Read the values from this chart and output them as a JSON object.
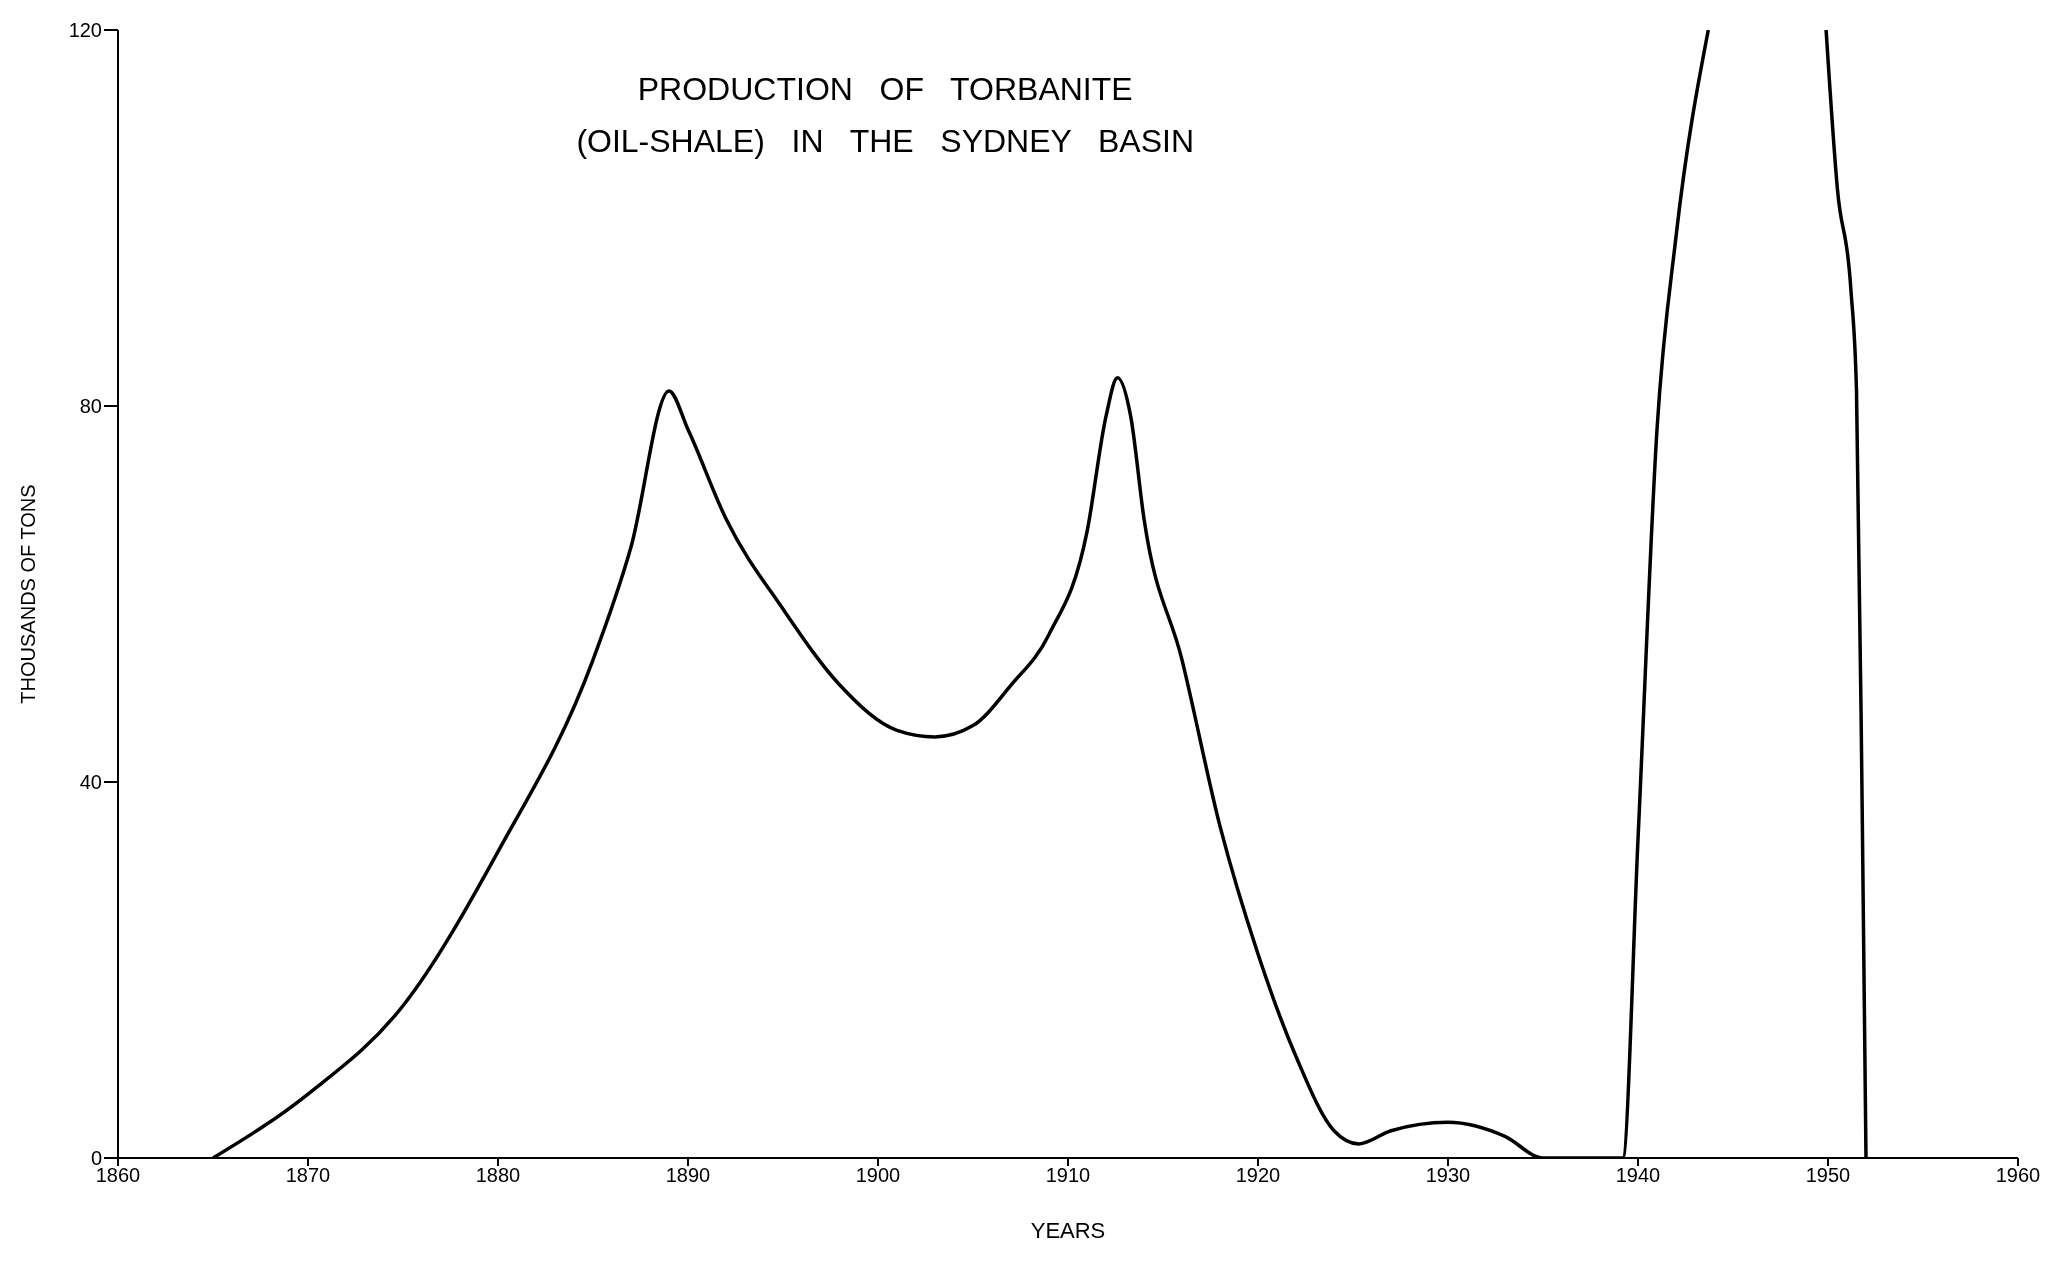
{
  "chart_data": {
    "type": "line",
    "title": "PRODUCTION   OF   TORBANITE",
    "subtitle": "(OIL-SHALE)   IN   THE   SYDNEY   BASIN",
    "xlabel": "YEARS",
    "ylabel": "THOUSANDS   OF   TONS",
    "xlim": [
      1860,
      1960
    ],
    "xticks": [
      1860,
      1870,
      1880,
      1890,
      1900,
      1910,
      1920,
      1930,
      1940,
      1950,
      1960
    ],
    "ylim": [
      0,
      120
    ],
    "yticks": [
      0,
      40,
      80,
      120
    ],
    "grid": false,
    "legend": false,
    "marker": "none",
    "line_style": "solid",
    "series": [
      {
        "color": "#000000",
        "x": [
          1865,
          1870,
          1875,
          1880,
          1885,
          1887,
          1889,
          1890,
          1892,
          1895,
          1898,
          1901,
          1903,
          1905,
          1907,
          1909,
          1911,
          1912,
          1912.6,
          1913.3,
          1914,
          1916,
          1918,
          1920,
          1922,
          1924,
          1925.3,
          1927,
          1930,
          1933,
          1935,
          1939.2,
          1940,
          1941,
          1942,
          1943.7,
          1946,
          1949.9,
          1950.5,
          1951.2,
          1951.5,
          1951.8,
          1952
        ],
        "values": [
          0,
          6.8,
          16.2,
          32.6,
          53,
          65,
          81.6,
          77.5,
          68,
          58.4,
          50.3,
          45.5,
          44.8,
          46,
          50.3,
          55.7,
          66.6,
          78.9,
          83,
          78.9,
          68,
          53,
          35.3,
          21.7,
          10.8,
          2.9,
          1.5,
          2.9,
          3.8,
          2.3,
          0,
          0,
          33.9,
          77.5,
          98,
          120,
          null,
          120,
          103,
          92.5,
          81.6,
          37,
          0
        ]
      }
    ]
  }
}
